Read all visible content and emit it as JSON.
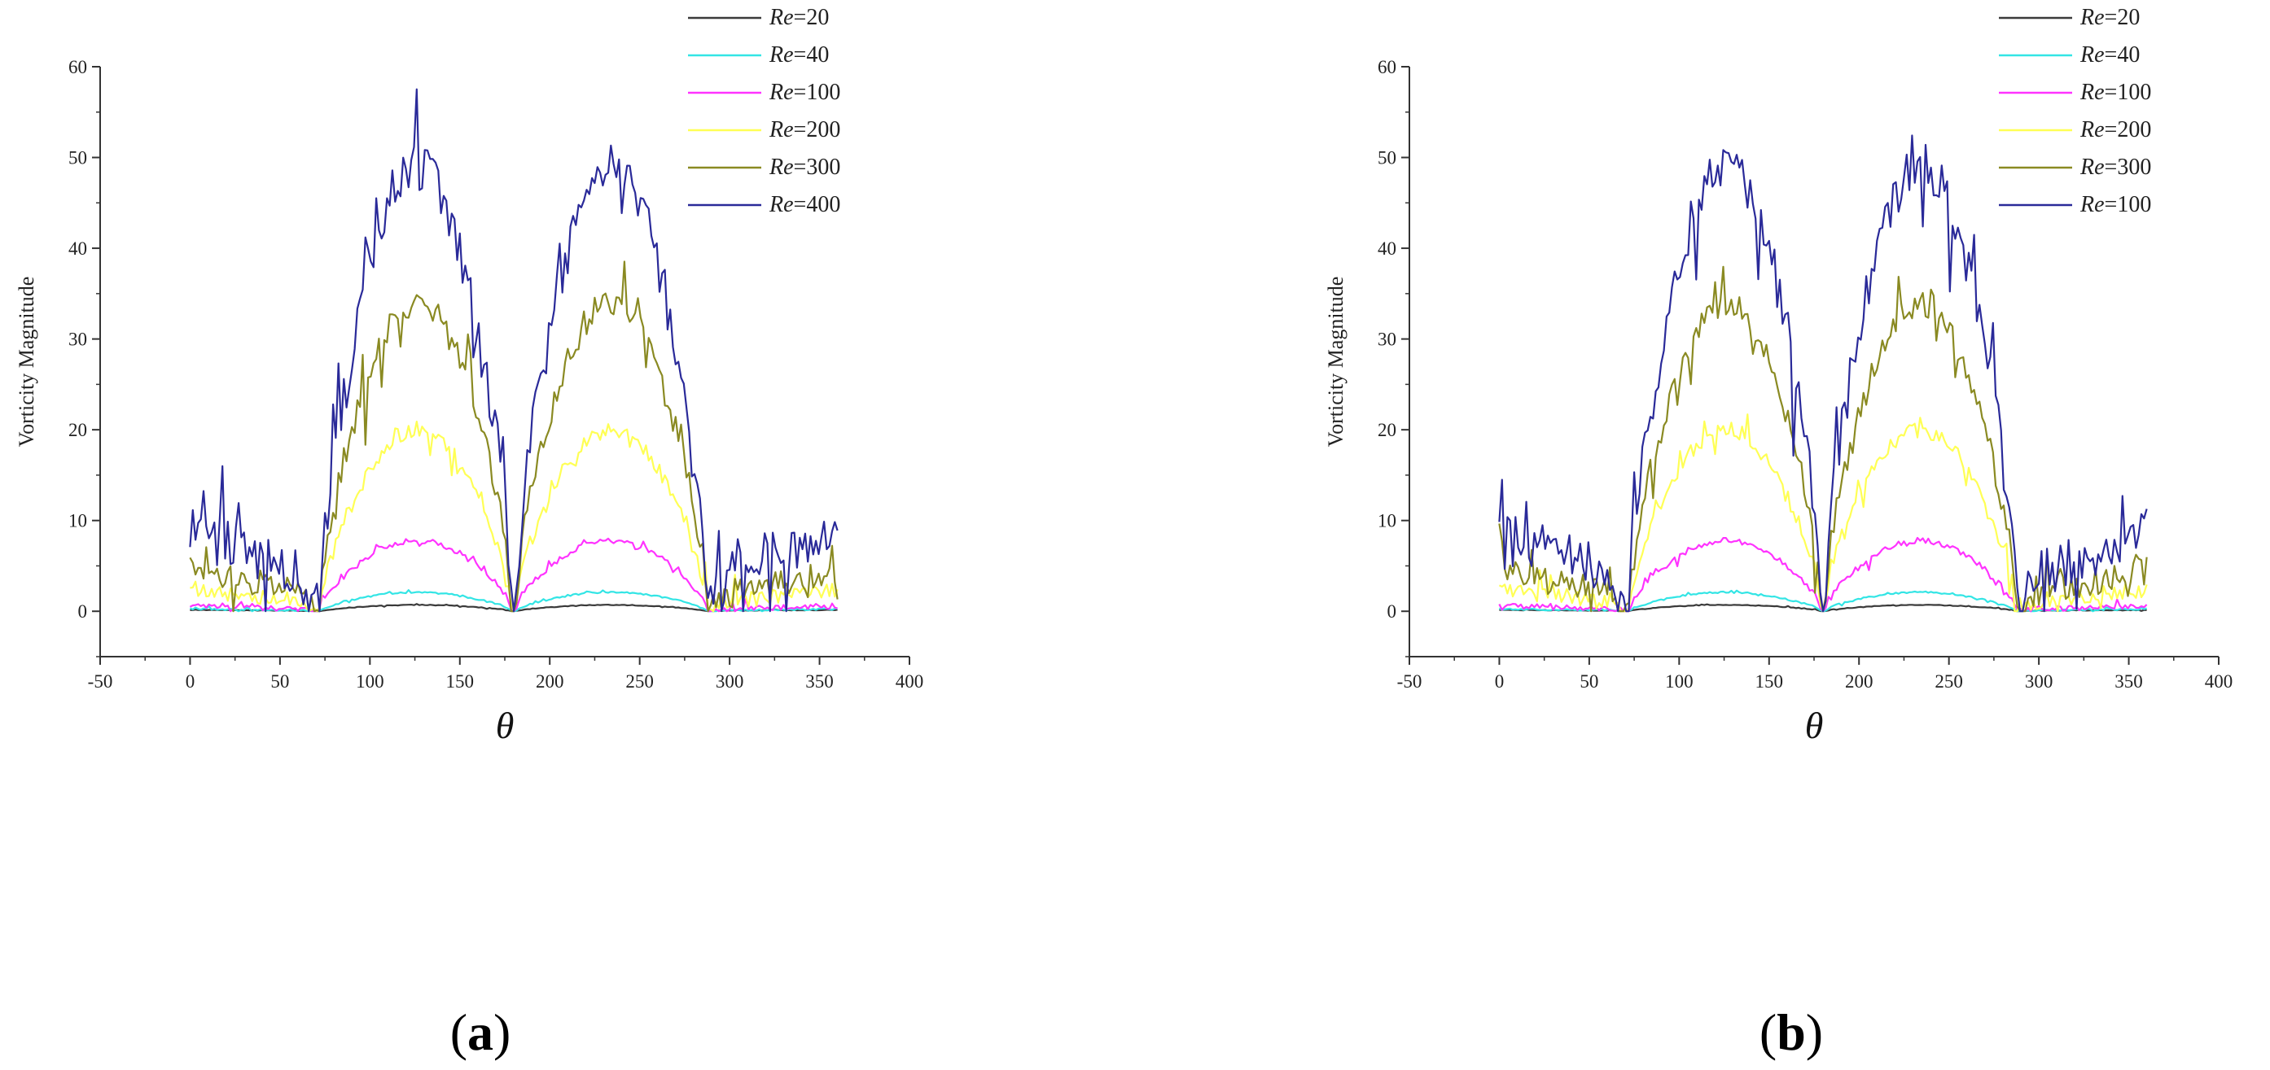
{
  "chart_data": [
    {
      "type": "line",
      "panel_label": "(a)",
      "panel_prefix": "(",
      "panel_letter": "a",
      "panel_suffix": ")",
      "xlabel": "θ",
      "ylabel": "Vorticity Magnitude",
      "xlim": [
        -50,
        400
      ],
      "ylim": [
        -5,
        60
      ],
      "xticks": [
        -50,
        0,
        50,
        100,
        150,
        200,
        250,
        300,
        350,
        400
      ],
      "yticks": [
        0,
        10,
        20,
        30,
        40,
        50,
        60
      ],
      "legend_position": "top-right",
      "series": [
        {
          "name": "Re=20",
          "legend_prefix": "Re",
          "legend_suffix": "=20",
          "color": "#3a3a3a",
          "amplitude": 0.7,
          "front_level": 0.15,
          "noise": 0.12
        },
        {
          "name": "Re=40",
          "legend_prefix": "Re",
          "legend_suffix": "=40",
          "color": "#33e5e5",
          "amplitude": 2.1,
          "front_level": 0.25,
          "noise": 0.3
        },
        {
          "name": "Re=100",
          "legend_prefix": "Re",
          "legend_suffix": "=100",
          "color": "#ff33ff",
          "amplitude": 7.8,
          "front_level": 0.6,
          "noise": 1.0
        },
        {
          "name": "Re=200",
          "legend_prefix": "Re",
          "legend_suffix": "=200",
          "color": "#ffff55",
          "amplitude": 20.0,
          "front_level": 2.5,
          "noise": 3.0
        },
        {
          "name": "Re=300",
          "legend_prefix": "Re",
          "legend_suffix": "=300",
          "color": "#8a8a22",
          "amplitude": 34.0,
          "front_level": 4.5,
          "noise": 5.0
        },
        {
          "name": "Re=400",
          "legend_prefix": "Re",
          "legend_suffix": "=400",
          "color": "#2a2a99",
          "amplitude": 49.0,
          "front_level": 9.0,
          "noise": 9.0
        }
      ]
    },
    {
      "type": "line",
      "panel_label": "(b)",
      "panel_prefix": "(",
      "panel_letter": "b",
      "panel_suffix": ")",
      "xlabel": "θ",
      "ylabel": "Vorticity Magnitude",
      "xlim": [
        -50,
        400
      ],
      "ylim": [
        -5,
        60
      ],
      "xticks": [
        -50,
        0,
        50,
        100,
        150,
        200,
        250,
        300,
        350,
        400
      ],
      "yticks": [
        0,
        10,
        20,
        30,
        40,
        50,
        60
      ],
      "legend_position": "top-right",
      "series": [
        {
          "name": "Re=20",
          "legend_prefix": "Re",
          "legend_suffix": "=20",
          "color": "#3a3a3a",
          "amplitude": 0.7,
          "front_level": 0.15,
          "noise": 0.12
        },
        {
          "name": "Re=40",
          "legend_prefix": "Re",
          "legend_suffix": "=40",
          "color": "#33e5e5",
          "amplitude": 2.1,
          "front_level": 0.25,
          "noise": 0.3
        },
        {
          "name": "Re=100",
          "legend_prefix": "Re",
          "legend_suffix": "=100",
          "color": "#ff33ff",
          "amplitude": 7.8,
          "front_level": 0.6,
          "noise": 1.0
        },
        {
          "name": "Re=200",
          "legend_prefix": "Re",
          "legend_suffix": "=200",
          "color": "#ffff55",
          "amplitude": 20.0,
          "front_level": 2.5,
          "noise": 3.0
        },
        {
          "name": "Re=300",
          "legend_prefix": "Re",
          "legend_suffix": "=300",
          "color": "#8a8a22",
          "amplitude": 34.0,
          "front_level": 4.5,
          "noise": 5.0
        },
        {
          "name": "Re=100",
          "legend_prefix": "Re",
          "legend_suffix": "=100",
          "color": "#2a2a99",
          "amplitude": 49.0,
          "front_level": 9.0,
          "noise": 9.0
        }
      ]
    }
  ]
}
